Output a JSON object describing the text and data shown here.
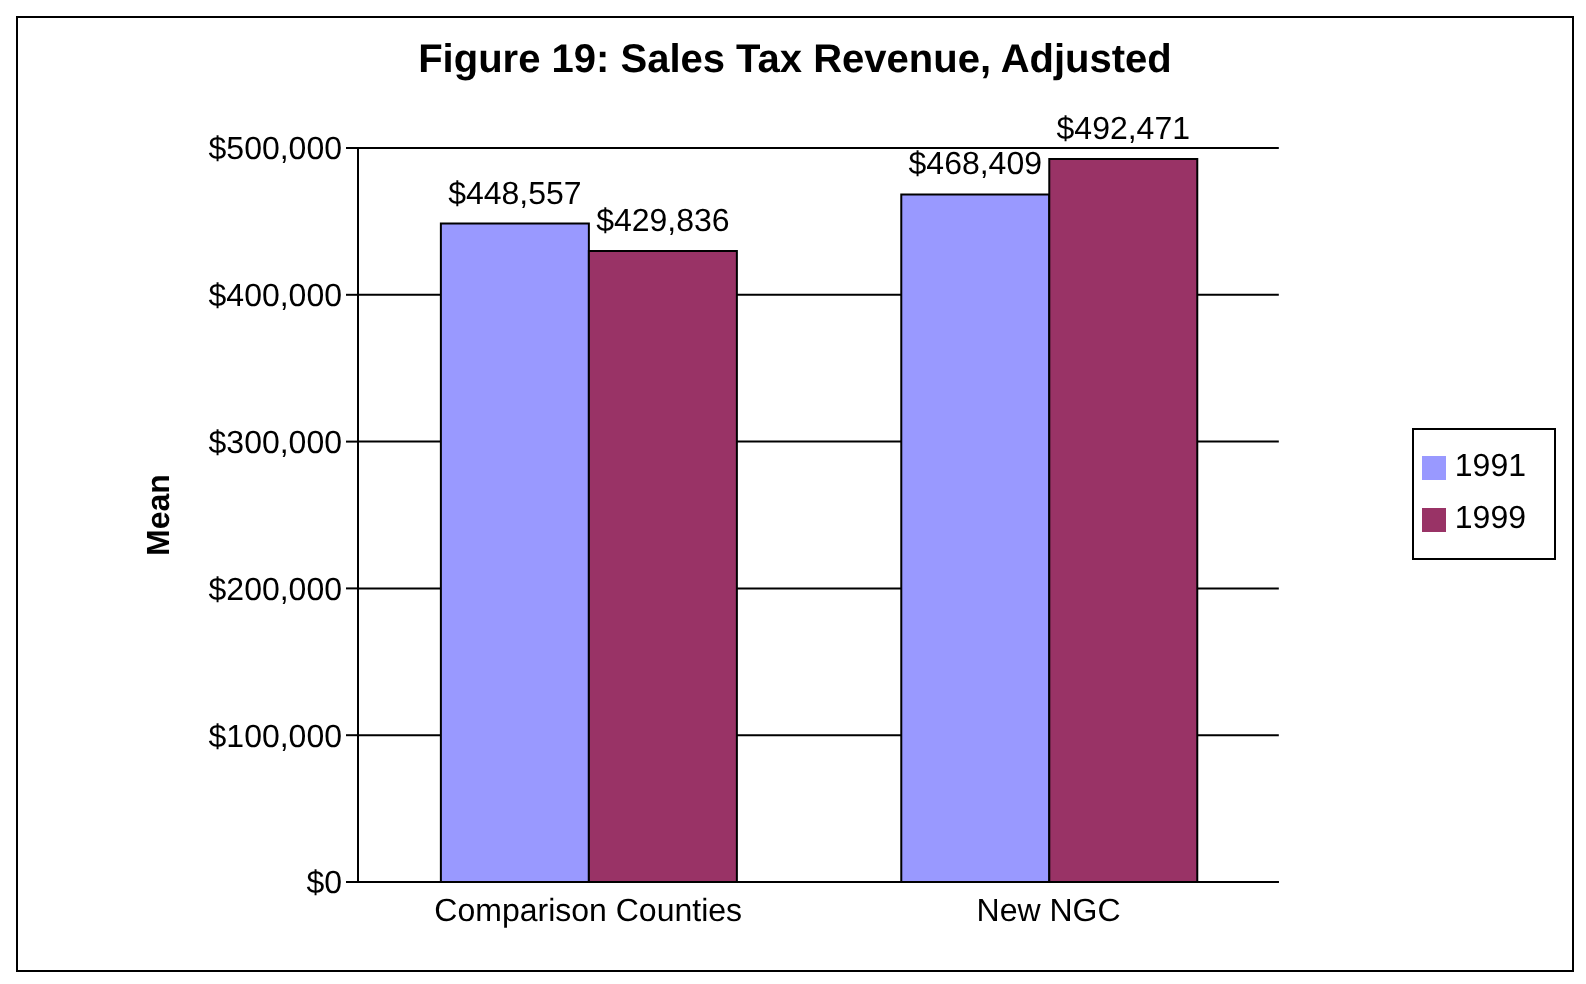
{
  "chart_data": {
    "type": "bar",
    "title": "Figure 19: Sales Tax Revenue, Adjusted",
    "ylabel": "Mean",
    "categories": [
      "Comparison Counties",
      "New NGC"
    ],
    "series": [
      {
        "name": "1991",
        "color": "#9999ff",
        "values": [
          448557,
          468409
        ],
        "value_labels": [
          "$448,557",
          "$468,409"
        ]
      },
      {
        "name": "1999",
        "color": "#993366",
        "values": [
          429836,
          492471
        ],
        "value_labels": [
          "$429,836",
          "$492,471"
        ]
      }
    ],
    "ylim": [
      0,
      500000
    ],
    "yticks": [
      {
        "value": 0,
        "label": "$0"
      },
      {
        "value": 100000,
        "label": "$100,000"
      },
      {
        "value": 200000,
        "label": "$200,000"
      },
      {
        "value": 300000,
        "label": "$300,000"
      },
      {
        "value": 400000,
        "label": "$400,000"
      },
      {
        "value": 500000,
        "label": "$500,000"
      }
    ],
    "grid": "y",
    "legend": "right"
  }
}
